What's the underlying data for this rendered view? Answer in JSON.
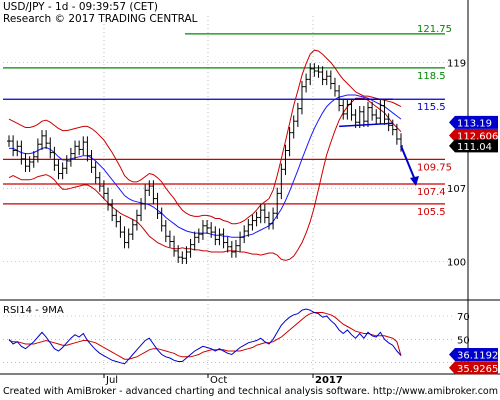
{
  "header": {
    "line1": "USD/JPY - 1d - 09:39:57 (CET)",
    "line2": "Research © 2017 TRADING CENTRAL"
  },
  "footer": "Created with AmiBroker - advanced charting and technical analysis software. http://www.amibroker.com",
  "colors": {
    "price": "#000000",
    "bollinger": "#cc0000",
    "ma": "#1a1aff",
    "resistance": "#cc0000",
    "support_green": "#008800",
    "pivot_blue": "#0000cc",
    "forecast_arrow": "#0000cc",
    "rsi": "#0000cc",
    "rsi_ma": "#cc0000",
    "tag_blue": "#0000cc",
    "tag_red": "#cc0000",
    "tag_black": "#000000"
  },
  "chart_data": [
    {
      "type": "line",
      "title": "USD/JPY - 1d",
      "x_ticks": [
        "Jul",
        "Oct",
        "2017"
      ],
      "y_ticks": [
        119,
        107,
        100
      ],
      "ylim": [
        96.5,
        122.5
      ],
      "levels": [
        {
          "value": 121.75,
          "label": "121.75",
          "color": "#008800"
        },
        {
          "value": 118.5,
          "label": "118.5",
          "color": "#008800"
        },
        {
          "value": 115.5,
          "label": "115.5",
          "color": "#0000cc"
        },
        {
          "value": 109.75,
          "label": "109.75",
          "color": "#cc0000"
        },
        {
          "value": 107.4,
          "label": "107.4",
          "color": "#cc0000"
        },
        {
          "value": 105.5,
          "label": "105.5",
          "color": "#cc0000"
        }
      ],
      "price_tags": [
        {
          "value": 113.19,
          "label": "113.19",
          "style": "blue"
        },
        {
          "value": 112.606,
          "label": "112.606",
          "style": "red"
        },
        {
          "value": 111.04,
          "label": "111.04",
          "style": "black"
        }
      ],
      "series": [
        {
          "values": [
            111.5,
            110.6,
            111.0,
            109.8,
            109.1,
            109.5,
            110.0,
            111.2,
            112.0,
            111.3,
            110.4,
            109.2,
            108.4,
            108.9,
            109.6,
            110.3,
            111.0,
            110.7,
            111.4,
            110.1,
            109.0,
            108.0,
            107.2,
            106.5,
            105.4,
            104.4,
            103.8,
            102.8,
            101.8,
            102.6,
            103.5,
            104.4,
            105.5,
            106.8,
            107.2,
            106.0,
            104.6,
            103.4,
            102.4,
            101.9,
            101.0,
            100.4,
            100.3,
            100.9,
            101.6,
            102.3,
            102.6,
            103.4,
            103.2,
            102.8,
            102.1,
            102.6,
            101.8,
            101.4,
            100.9,
            101.5,
            102.3,
            102.9,
            103.5,
            103.9,
            104.2,
            104.9,
            104.2,
            103.6,
            104.6,
            106.5,
            108.8,
            110.6,
            112.3,
            113.4,
            114.6,
            116.7,
            117.4,
            118.4,
            118.2,
            118.1,
            117.4,
            117.7,
            117.0,
            116.3,
            114.9,
            114.1,
            115.0,
            114.0,
            113.3,
            114.3,
            113.4,
            114.7,
            114.0,
            113.7,
            114.9,
            113.6,
            113.0,
            112.6,
            111.7,
            111.04
          ]
        },
        {
          "values": [
            110.8,
            110.8,
            110.6,
            110.4,
            110.3,
            110.3,
            110.4,
            110.6,
            110.8,
            110.9,
            110.7,
            110.4,
            110.0,
            109.7,
            109.7,
            109.8,
            109.9,
            110.0,
            110.1,
            110.1,
            109.9,
            109.6,
            109.2,
            108.8,
            108.3,
            107.8,
            107.3,
            106.8,
            106.3,
            106.0,
            105.8,
            105.7,
            105.6,
            105.5,
            105.4,
            105.2,
            104.9,
            104.6,
            104.2,
            103.9,
            103.6,
            103.3,
            103.1,
            102.9,
            102.8,
            102.7,
            102.7,
            102.7,
            102.7,
            102.6,
            102.5,
            102.5,
            102.4,
            102.4,
            102.3,
            102.3,
            102.3,
            102.4,
            102.5,
            102.6,
            102.8,
            103.0,
            103.2,
            103.4,
            103.8,
            104.4,
            105.0,
            105.8,
            106.7,
            107.7,
            108.7,
            109.8,
            110.8,
            111.8,
            112.7,
            113.5,
            114.2,
            114.8,
            115.2,
            115.5,
            115.7,
            115.8,
            115.9,
            115.9,
            115.9,
            115.8,
            115.7,
            115.6,
            115.4,
            115.2,
            115.0,
            114.8,
            114.5,
            114.2,
            113.9,
            113.6
          ]
        },
        {
          "values": [
            113.6,
            113.4,
            113.2,
            113.0,
            112.8,
            112.8,
            112.9,
            113.1,
            113.4,
            113.5,
            113.3,
            113.0,
            112.7,
            112.5,
            112.5,
            112.6,
            112.7,
            112.8,
            112.9,
            112.9,
            112.7,
            112.4,
            112.0,
            111.6,
            111.0,
            110.4,
            109.7,
            109.0,
            108.2,
            107.8,
            107.6,
            107.6,
            107.8,
            108.1,
            108.4,
            108.3,
            108.0,
            107.6,
            107.0,
            106.5,
            106.0,
            105.4,
            104.9,
            104.6,
            104.4,
            104.3,
            104.3,
            104.4,
            104.4,
            104.3,
            104.1,
            104.1,
            103.9,
            103.8,
            103.6,
            103.6,
            103.7,
            103.9,
            104.2,
            104.5,
            104.9,
            105.4,
            105.7,
            106.0,
            106.8,
            108.2,
            109.8,
            111.5,
            113.2,
            114.9,
            116.3,
            117.8,
            118.9,
            119.8,
            120.2,
            120.1,
            119.8,
            119.4,
            119.0,
            118.5,
            117.9,
            117.4,
            117.0,
            116.6,
            116.2,
            116.0,
            115.8,
            115.8,
            115.7,
            115.6,
            115.5,
            115.4,
            115.3,
            115.2,
            115.0,
            114.8
          ]
        },
        {
          "values": [
            108.0,
            108.2,
            108.0,
            107.8,
            107.8,
            107.8,
            107.9,
            108.1,
            108.2,
            108.3,
            108.1,
            107.8,
            107.3,
            106.9,
            106.9,
            107.0,
            107.1,
            107.2,
            107.3,
            107.3,
            107.1,
            106.8,
            106.4,
            106.0,
            105.6,
            105.2,
            104.9,
            104.6,
            104.4,
            104.2,
            104.0,
            103.8,
            103.4,
            102.9,
            102.4,
            102.1,
            101.8,
            101.6,
            101.4,
            101.3,
            101.2,
            101.2,
            101.3,
            101.2,
            101.2,
            101.1,
            101.1,
            101.0,
            101.0,
            100.9,
            100.9,
            100.9,
            100.9,
            101.0,
            101.0,
            101.0,
            100.9,
            100.9,
            100.8,
            100.7,
            100.7,
            100.6,
            100.7,
            100.8,
            100.8,
            100.6,
            100.2,
            100.1,
            100.2,
            100.5,
            101.1,
            101.8,
            102.7,
            103.8,
            105.2,
            106.9,
            108.6,
            110.2,
            111.4,
            112.5,
            113.5,
            114.2,
            114.8,
            115.2,
            115.6,
            115.6,
            115.6,
            115.4,
            115.1,
            114.8,
            114.5,
            114.2,
            113.7,
            113.2,
            112.8,
            112.4
          ]
        }
      ],
      "forecast": {
        "from": 111.04,
        "to": 107.4
      },
      "channel": {
        "upper": [
          115.5,
          115.5
        ],
        "lower": [
          112.9,
          113.2
        ]
      }
    },
    {
      "type": "line",
      "title": "RSI14 - 9MA",
      "y_ticks": [
        70,
        50,
        30
      ],
      "ylim": [
        22,
        82
      ],
      "price_tags": [
        {
          "value": 36.1192,
          "label": "36.1192",
          "style": "blue"
        },
        {
          "value": 35.9265,
          "label": "35.9265",
          "style": "red"
        }
      ],
      "series": [
        {
          "values": [
            50,
            46,
            48,
            44,
            42,
            45,
            48,
            52,
            56,
            52,
            47,
            42,
            40,
            43,
            47,
            51,
            54,
            52,
            55,
            49,
            45,
            41,
            38,
            36,
            34,
            32,
            31,
            30,
            29,
            33,
            37,
            41,
            45,
            49,
            51,
            46,
            41,
            37,
            35,
            34,
            32,
            31,
            31,
            34,
            37,
            40,
            42,
            44,
            43,
            42,
            40,
            42,
            40,
            38,
            37,
            40,
            43,
            45,
            47,
            48,
            49,
            51,
            48,
            46,
            50,
            56,
            62,
            66,
            69,
            71,
            72,
            75,
            76,
            75,
            73,
            72,
            69,
            70,
            66,
            63,
            58,
            55,
            58,
            54,
            51,
            55,
            51,
            56,
            53,
            52,
            56,
            50,
            47,
            45,
            40,
            36.12
          ]
        },
        {
          "values": [
            49,
            48,
            48,
            47,
            46,
            46,
            46,
            47,
            48,
            49,
            48,
            47,
            46,
            45,
            45,
            46,
            47,
            48,
            49,
            49,
            48,
            47,
            45,
            43,
            41,
            39,
            37,
            35,
            33,
            33,
            34,
            35,
            37,
            39,
            41,
            42,
            42,
            41,
            40,
            39,
            38,
            36,
            35,
            35,
            35,
            36,
            37,
            39,
            40,
            41,
            41,
            41,
            41,
            40,
            40,
            40,
            40,
            41,
            42,
            43,
            45,
            46,
            47,
            47,
            48,
            50,
            52,
            55,
            58,
            61,
            64,
            67,
            70,
            72,
            73,
            73,
            73,
            72,
            71,
            69,
            66,
            63,
            61,
            59,
            57,
            56,
            55,
            55,
            54,
            53,
            53,
            53,
            52,
            51,
            48,
            35.93
          ]
        }
      ]
    }
  ]
}
